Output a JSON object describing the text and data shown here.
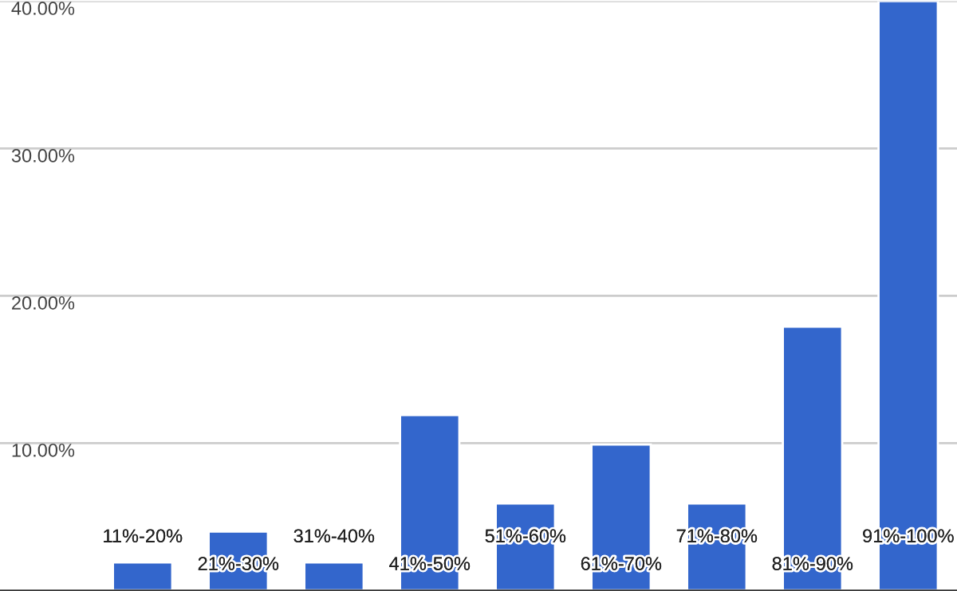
{
  "chart_data": {
    "type": "bar",
    "categories": [
      "11%-20%",
      "21%-30%",
      "31%-40%",
      "41%-50%",
      "51%-60%",
      "61%-70%",
      "71%-80%",
      "81%-90%",
      "91%-100%"
    ],
    "values": [
      1.9,
      4.0,
      1.9,
      11.9,
      5.9,
      9.9,
      5.9,
      17.9,
      40.0
    ],
    "color": "#3366cc",
    "ylim": [
      0,
      40
    ],
    "yticks": [
      {
        "value": 10,
        "label": "10.00%"
      },
      {
        "value": 20,
        "label": "20.00%"
      },
      {
        "value": 30,
        "label": "30.00%"
      },
      {
        "value": 40,
        "label": "40.00%"
      }
    ],
    "grid": "y",
    "legend": false
  }
}
